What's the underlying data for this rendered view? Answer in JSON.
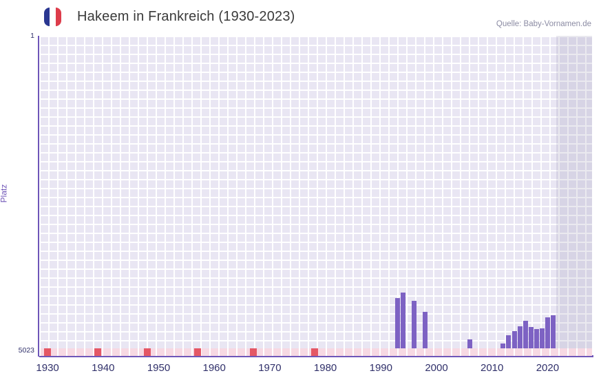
{
  "header": {
    "title": "Hakeem in Frankreich (1930-2023)",
    "source": "Quelle: Baby-Vornamen.de"
  },
  "axes": {
    "y_title": "Platz",
    "y_ticks": [
      "1",
      "5023"
    ],
    "x_ticks": [
      1930,
      1940,
      1950,
      1960,
      1970,
      1980,
      1990,
      2000,
      2010,
      2020
    ]
  },
  "colors": {
    "bar": "#7d62c3",
    "axis-line": "#6e56b8",
    "grid-cell": "#e9e6f3",
    "grid-line": "#ffffff",
    "strip-bg": "#f7d9e3",
    "strip-mark": "#e45765",
    "band": "rgba(125,120,155,0.16)",
    "tick-label": "#30306a",
    "y-title": "#7258b8",
    "title-text": "#3a3a3a",
    "source-text": "#8b8ba3",
    "flag-blue": "#2a3791",
    "flag-white": "#ffffff",
    "flag-red": "#dd3c4b"
  },
  "chart_data": {
    "type": "bar",
    "title": "Hakeem in Frankreich (1930-2023)",
    "xlabel": "",
    "ylabel": "Platz",
    "y_axis": {
      "top_rank": 1,
      "bottom_rank": 5023,
      "inverted": true
    },
    "x_domain": [
      1928.5,
      2028
    ],
    "x_tick_interval": 10,
    "grid": true,
    "legend": false,
    "points": [
      {
        "year": 1993,
        "rank": 4210
      },
      {
        "year": 1994,
        "rank": 4130
      },
      {
        "year": 1996,
        "rank": 4260
      },
      {
        "year": 1998,
        "rank": 4440
      },
      {
        "year": 2006,
        "rank": 4880
      },
      {
        "year": 2012,
        "rank": 4940
      },
      {
        "year": 2013,
        "rank": 4810
      },
      {
        "year": 2014,
        "rank": 4750
      },
      {
        "year": 2015,
        "rank": 4670
      },
      {
        "year": 2016,
        "rank": 4580
      },
      {
        "year": 2017,
        "rank": 4680
      },
      {
        "year": 2018,
        "rank": 4710
      },
      {
        "year": 2019,
        "rank": 4700
      },
      {
        "year": 2020,
        "rank": 4520
      },
      {
        "year": 2021,
        "rank": 4490
      }
    ],
    "strip_marks_years": [
      1930,
      1939,
      1948,
      1957,
      1967,
      1978
    ],
    "recent_band_start_year": 2021.6
  }
}
